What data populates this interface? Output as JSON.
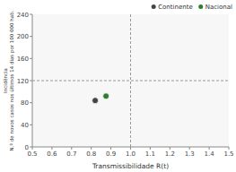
{
  "chart_data": {
    "type": "scatter",
    "xlabel": "Transmissibilidade R(t)",
    "ylabel": "Incidência\nN.º de novos casos nos últimos 14 dias por 100 000 hab.",
    "xlim": [
      0.5,
      1.5
    ],
    "ylim": [
      0,
      240
    ],
    "xticks": [
      0.5,
      0.6,
      0.7,
      0.8,
      0.9,
      {
        "value": 1,
        "label": "1.0"
      },
      1.1,
      1.2,
      1.3,
      1.4,
      1.5
    ],
    "yticks": [
      0,
      40,
      80,
      120,
      160,
      200,
      240
    ],
    "vline": 1,
    "hline": 120,
    "grid": false,
    "legend": "upper right",
    "series": [
      {
        "name": "Continente",
        "color": "#444444",
        "x": [
          0.82
        ],
        "values": [
          84
        ]
      },
      {
        "name": "Nacional",
        "color": "#2e7d2e",
        "x": [
          0.875
        ],
        "values": [
          92
        ]
      }
    ]
  }
}
